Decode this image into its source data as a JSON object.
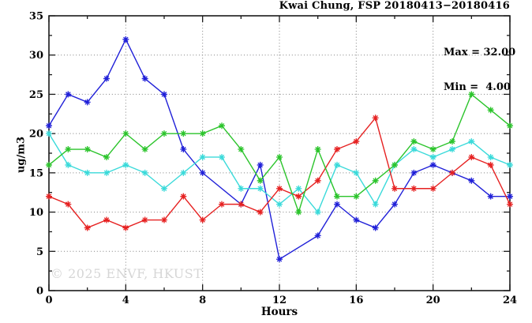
{
  "watermark": "© 2025 ENVF, HKUST",
  "chart_data": {
    "type": "line",
    "title": "Kwai Chung, FSP 20180413−20180416",
    "xlabel": "Hours",
    "ylabel": "ug/m3",
    "xlim": [
      0,
      24
    ],
    "ylim": [
      0,
      35
    ],
    "x_major_ticks": [
      0,
      4,
      8,
      12,
      16,
      20,
      24
    ],
    "x_minor_step": 2,
    "y_major_ticks": [
      0,
      5,
      10,
      15,
      20,
      25,
      30,
      35
    ],
    "y_minor_step": 2.5,
    "grid": true,
    "legend_position": "none",
    "annotations": {
      "max_label": "Max = 32.00",
      "min_label": "Min =  4.00"
    },
    "x": [
      0,
      1,
      2,
      3,
      4,
      5,
      6,
      7,
      8,
      9,
      10,
      11,
      12,
      13,
      14,
      15,
      16,
      17,
      18,
      19,
      20,
      21,
      22,
      23,
      24
    ],
    "series": [
      {
        "name": "day-1-blue",
        "color": "#2020d8",
        "values": [
          21,
          25,
          24,
          27,
          32,
          27,
          25,
          18,
          15,
          null,
          11,
          16,
          4,
          null,
          7,
          11,
          9,
          8,
          11,
          15,
          16,
          15,
          14,
          12,
          12
        ]
      },
      {
        "name": "day-2-cyan",
        "color": "#3adada",
        "values": [
          20,
          16,
          15,
          15,
          16,
          15,
          13,
          15,
          17,
          17,
          13,
          13,
          11,
          13,
          10,
          16,
          15,
          11,
          16,
          18,
          17,
          18,
          19,
          17,
          16
        ]
      },
      {
        "name": "day-3-red",
        "color": "#e62121",
        "values": [
          12,
          11,
          8,
          9,
          8,
          9,
          9,
          12,
          9,
          11,
          11,
          10,
          13,
          12,
          14,
          18,
          19,
          22,
          13,
          13,
          13,
          15,
          17,
          16,
          11
        ]
      },
      {
        "name": "day-4-green",
        "color": "#2bc42b",
        "values": [
          16,
          18,
          18,
          17,
          20,
          18,
          20,
          20,
          20,
          21,
          18,
          14,
          17,
          10,
          18,
          12,
          12,
          14,
          16,
          19,
          18,
          19,
          25,
          23,
          21
        ]
      }
    ]
  }
}
